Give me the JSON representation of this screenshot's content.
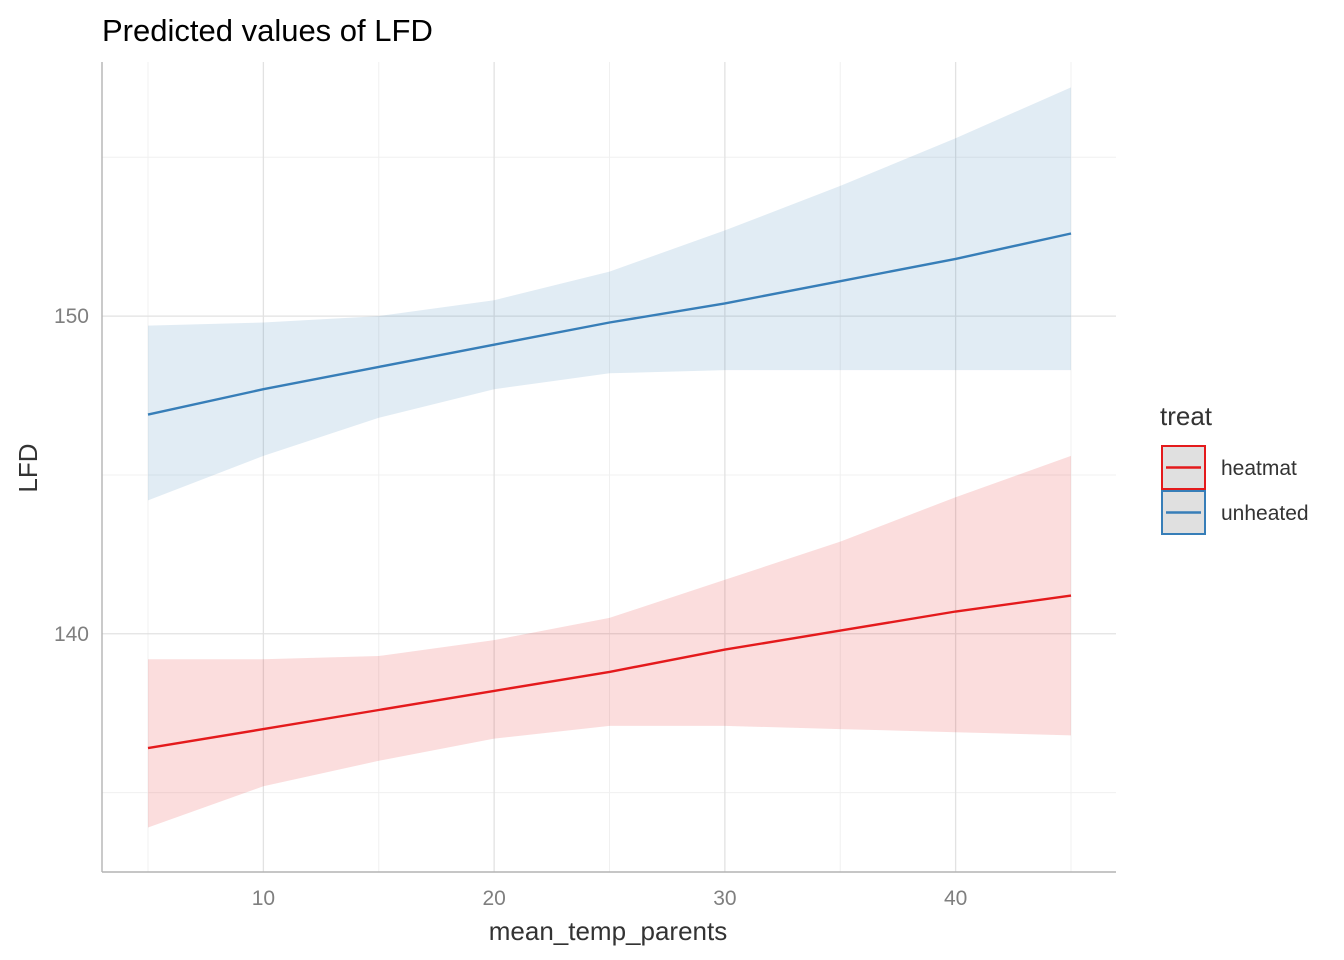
{
  "chart_data": {
    "type": "line",
    "title": "Predicted values of LFD",
    "xlabel": "mean_temp_parents",
    "ylabel": "LFD",
    "xlim": [
      5,
      45
    ],
    "ylim": [
      132.5,
      158
    ],
    "x_ticks": [
      10,
      20,
      30,
      40
    ],
    "y_ticks": [
      140,
      150
    ],
    "grid": true,
    "legend": {
      "title": "treat",
      "position": "right"
    },
    "series": [
      {
        "name": "heatmat",
        "color": "#E41A1C",
        "fill": "#E41A1C",
        "x": [
          5,
          10,
          15,
          20,
          25,
          30,
          35,
          40,
          45
        ],
        "y": [
          136.4,
          137.0,
          137.6,
          138.2,
          138.8,
          139.5,
          140.1,
          140.7,
          141.2
        ],
        "lower": [
          133.9,
          135.2,
          136.0,
          136.7,
          137.1,
          137.1,
          137.0,
          136.9,
          136.8
        ],
        "upper": [
          139.2,
          139.2,
          139.3,
          139.8,
          140.5,
          141.7,
          142.9,
          144.3,
          145.6
        ]
      },
      {
        "name": "unheated",
        "color": "#377EB8",
        "fill": "#377EB8",
        "x": [
          5,
          10,
          15,
          20,
          25,
          30,
          35,
          40,
          45
        ],
        "y": [
          146.9,
          147.7,
          148.4,
          149.1,
          149.8,
          150.4,
          151.1,
          151.8,
          152.6
        ],
        "lower": [
          144.2,
          145.6,
          146.8,
          147.7,
          148.2,
          148.3,
          148.3,
          148.3,
          148.3
        ],
        "upper": [
          149.7,
          149.8,
          150.0,
          150.5,
          151.4,
          152.7,
          154.1,
          155.6,
          157.2
        ]
      }
    ]
  }
}
